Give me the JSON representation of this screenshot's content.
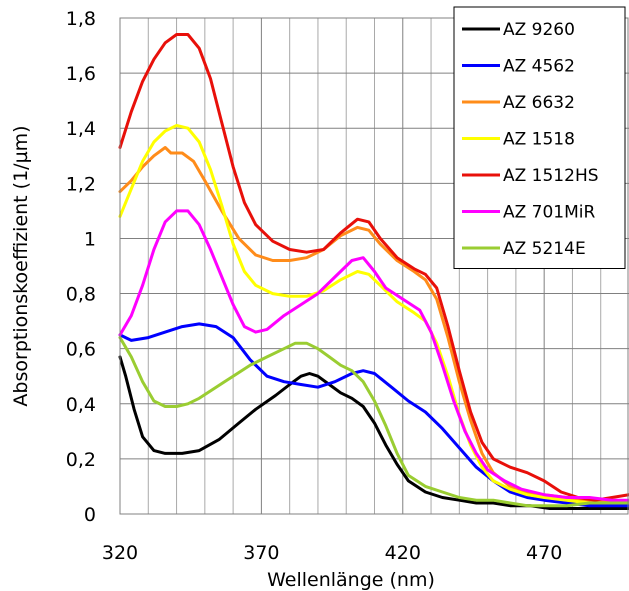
{
  "chart_data": {
    "type": "line",
    "title": "",
    "xlabel": "Wellenlänge (nm)",
    "ylabel": "Absorptionskoeffizient (1/µm)",
    "xlim": [
      320,
      500
    ],
    "ylim": [
      0,
      1.8
    ],
    "xticks": [
      320,
      370,
      420,
      470
    ],
    "xtick_labels": [
      "320",
      "370",
      "420",
      "470"
    ],
    "yticks": [
      0,
      0.2,
      0.4,
      0.6,
      0.8,
      1.0,
      1.2,
      1.4,
      1.6,
      1.8
    ],
    "ytick_labels": [
      "0",
      "0,2",
      "0,4",
      "0,6",
      "0,8",
      "1",
      "1,2",
      "1,4",
      "1,6",
      "1,8"
    ],
    "grid": true,
    "legend_position": "top-right",
    "series": [
      {
        "name": "AZ 9260",
        "color": "#000000",
        "points": [
          [
            320,
            0.57
          ],
          [
            322,
            0.5
          ],
          [
            325,
            0.38
          ],
          [
            328,
            0.28
          ],
          [
            332,
            0.23
          ],
          [
            336,
            0.22
          ],
          [
            342,
            0.22
          ],
          [
            348,
            0.23
          ],
          [
            355,
            0.27
          ],
          [
            362,
            0.33
          ],
          [
            368,
            0.38
          ],
          [
            375,
            0.43
          ],
          [
            380,
            0.47
          ],
          [
            384,
            0.5
          ],
          [
            387,
            0.51
          ],
          [
            390,
            0.5
          ],
          [
            394,
            0.47
          ],
          [
            398,
            0.44
          ],
          [
            402,
            0.42
          ],
          [
            406,
            0.39
          ],
          [
            410,
            0.33
          ],
          [
            414,
            0.25
          ],
          [
            418,
            0.18
          ],
          [
            422,
            0.12
          ],
          [
            428,
            0.08
          ],
          [
            434,
            0.06
          ],
          [
            440,
            0.05
          ],
          [
            446,
            0.04
          ],
          [
            452,
            0.04
          ],
          [
            458,
            0.03
          ],
          [
            465,
            0.03
          ],
          [
            472,
            0.02
          ],
          [
            480,
            0.02
          ],
          [
            490,
            0.02
          ],
          [
            500,
            0.02
          ]
        ]
      },
      {
        "name": "AZ 4562",
        "color": "#0000ff",
        "points": [
          [
            320,
            0.65
          ],
          [
            324,
            0.63
          ],
          [
            330,
            0.64
          ],
          [
            336,
            0.66
          ],
          [
            342,
            0.68
          ],
          [
            348,
            0.69
          ],
          [
            354,
            0.68
          ],
          [
            360,
            0.64
          ],
          [
            366,
            0.56
          ],
          [
            372,
            0.5
          ],
          [
            378,
            0.48
          ],
          [
            384,
            0.47
          ],
          [
            390,
            0.46
          ],
          [
            396,
            0.48
          ],
          [
            402,
            0.51
          ],
          [
            406,
            0.52
          ],
          [
            410,
            0.51
          ],
          [
            416,
            0.46
          ],
          [
            422,
            0.41
          ],
          [
            428,
            0.37
          ],
          [
            434,
            0.31
          ],
          [
            440,
            0.24
          ],
          [
            446,
            0.17
          ],
          [
            452,
            0.12
          ],
          [
            458,
            0.08
          ],
          [
            464,
            0.06
          ],
          [
            470,
            0.05
          ],
          [
            478,
            0.04
          ],
          [
            486,
            0.03
          ],
          [
            494,
            0.03
          ],
          [
            500,
            0.03
          ]
        ]
      },
      {
        "name": "AZ 6632",
        "color": "#ff8c1a",
        "points": [
          [
            320,
            1.17
          ],
          [
            324,
            1.21
          ],
          [
            328,
            1.26
          ],
          [
            332,
            1.3
          ],
          [
            336,
            1.33
          ],
          [
            338,
            1.31
          ],
          [
            342,
            1.31
          ],
          [
            346,
            1.28
          ],
          [
            350,
            1.21
          ],
          [
            356,
            1.1
          ],
          [
            362,
            1.0
          ],
          [
            368,
            0.94
          ],
          [
            374,
            0.92
          ],
          [
            380,
            0.92
          ],
          [
            386,
            0.93
          ],
          [
            392,
            0.96
          ],
          [
            398,
            1.01
          ],
          [
            404,
            1.04
          ],
          [
            408,
            1.03
          ],
          [
            412,
            0.98
          ],
          [
            418,
            0.92
          ],
          [
            424,
            0.88
          ],
          [
            428,
            0.85
          ],
          [
            432,
            0.78
          ],
          [
            436,
            0.64
          ],
          [
            440,
            0.48
          ],
          [
            444,
            0.34
          ],
          [
            448,
            0.22
          ],
          [
            452,
            0.15
          ],
          [
            458,
            0.1
          ],
          [
            464,
            0.08
          ],
          [
            470,
            0.07
          ],
          [
            478,
            0.06
          ],
          [
            486,
            0.05
          ],
          [
            494,
            0.04
          ],
          [
            500,
            0.04
          ]
        ]
      },
      {
        "name": "AZ 1518",
        "color": "#ffff00",
        "points": [
          [
            320,
            1.08
          ],
          [
            324,
            1.18
          ],
          [
            328,
            1.28
          ],
          [
            332,
            1.35
          ],
          [
            336,
            1.39
          ],
          [
            340,
            1.41
          ],
          [
            344,
            1.4
          ],
          [
            348,
            1.35
          ],
          [
            352,
            1.25
          ],
          [
            356,
            1.12
          ],
          [
            360,
            0.98
          ],
          [
            364,
            0.88
          ],
          [
            368,
            0.83
          ],
          [
            374,
            0.8
          ],
          [
            380,
            0.79
          ],
          [
            386,
            0.79
          ],
          [
            392,
            0.81
          ],
          [
            398,
            0.85
          ],
          [
            404,
            0.88
          ],
          [
            408,
            0.87
          ],
          [
            412,
            0.83
          ],
          [
            418,
            0.77
          ],
          [
            424,
            0.73
          ],
          [
            428,
            0.7
          ],
          [
            432,
            0.62
          ],
          [
            436,
            0.5
          ],
          [
            440,
            0.36
          ],
          [
            444,
            0.25
          ],
          [
            448,
            0.17
          ],
          [
            452,
            0.12
          ],
          [
            458,
            0.09
          ],
          [
            464,
            0.07
          ],
          [
            470,
            0.06
          ],
          [
            478,
            0.05
          ],
          [
            486,
            0.04
          ],
          [
            494,
            0.04
          ],
          [
            500,
            0.04
          ]
        ]
      },
      {
        "name": "AZ 1512HS",
        "color": "#e8100a",
        "points": [
          [
            320,
            1.33
          ],
          [
            324,
            1.46
          ],
          [
            328,
            1.57
          ],
          [
            332,
            1.65
          ],
          [
            336,
            1.71
          ],
          [
            340,
            1.74
          ],
          [
            344,
            1.74
          ],
          [
            348,
            1.69
          ],
          [
            352,
            1.58
          ],
          [
            356,
            1.42
          ],
          [
            360,
            1.26
          ],
          [
            364,
            1.13
          ],
          [
            368,
            1.05
          ],
          [
            374,
            0.99
          ],
          [
            380,
            0.96
          ],
          [
            386,
            0.95
          ],
          [
            392,
            0.96
          ],
          [
            398,
            1.02
          ],
          [
            404,
            1.07
          ],
          [
            408,
            1.06
          ],
          [
            412,
            1.0
          ],
          [
            418,
            0.93
          ],
          [
            424,
            0.89
          ],
          [
            428,
            0.87
          ],
          [
            432,
            0.82
          ],
          [
            436,
            0.68
          ],
          [
            440,
            0.52
          ],
          [
            444,
            0.37
          ],
          [
            448,
            0.26
          ],
          [
            452,
            0.2
          ],
          [
            458,
            0.17
          ],
          [
            464,
            0.15
          ],
          [
            470,
            0.12
          ],
          [
            476,
            0.08
          ],
          [
            482,
            0.06
          ],
          [
            488,
            0.05
          ],
          [
            494,
            0.06
          ],
          [
            500,
            0.07
          ]
        ]
      },
      {
        "name": "AZ 701MiR",
        "color": "#ff00ff",
        "points": [
          [
            320,
            0.65
          ],
          [
            324,
            0.72
          ],
          [
            328,
            0.83
          ],
          [
            332,
            0.96
          ],
          [
            336,
            1.06
          ],
          [
            340,
            1.1
          ],
          [
            344,
            1.1
          ],
          [
            348,
            1.05
          ],
          [
            352,
            0.96
          ],
          [
            356,
            0.86
          ],
          [
            360,
            0.76
          ],
          [
            364,
            0.68
          ],
          [
            368,
            0.66
          ],
          [
            372,
            0.67
          ],
          [
            378,
            0.72
          ],
          [
            384,
            0.76
          ],
          [
            390,
            0.8
          ],
          [
            396,
            0.86
          ],
          [
            402,
            0.92
          ],
          [
            406,
            0.93
          ],
          [
            410,
            0.88
          ],
          [
            414,
            0.82
          ],
          [
            420,
            0.78
          ],
          [
            426,
            0.74
          ],
          [
            430,
            0.66
          ],
          [
            434,
            0.54
          ],
          [
            438,
            0.41
          ],
          [
            442,
            0.3
          ],
          [
            446,
            0.22
          ],
          [
            450,
            0.16
          ],
          [
            456,
            0.12
          ],
          [
            462,
            0.09
          ],
          [
            470,
            0.07
          ],
          [
            478,
            0.06
          ],
          [
            486,
            0.06
          ],
          [
            494,
            0.05
          ],
          [
            500,
            0.05
          ]
        ]
      },
      {
        "name": "AZ 5214E",
        "color": "#9acd32",
        "points": [
          [
            320,
            0.64
          ],
          [
            324,
            0.57
          ],
          [
            328,
            0.48
          ],
          [
            332,
            0.41
          ],
          [
            336,
            0.39
          ],
          [
            340,
            0.39
          ],
          [
            344,
            0.4
          ],
          [
            348,
            0.42
          ],
          [
            354,
            0.46
          ],
          [
            360,
            0.5
          ],
          [
            366,
            0.54
          ],
          [
            372,
            0.57
          ],
          [
            378,
            0.6
          ],
          [
            382,
            0.62
          ],
          [
            386,
            0.62
          ],
          [
            390,
            0.6
          ],
          [
            394,
            0.57
          ],
          [
            398,
            0.54
          ],
          [
            402,
            0.52
          ],
          [
            406,
            0.48
          ],
          [
            410,
            0.41
          ],
          [
            414,
            0.32
          ],
          [
            418,
            0.22
          ],
          [
            422,
            0.14
          ],
          [
            428,
            0.1
          ],
          [
            434,
            0.08
          ],
          [
            440,
            0.06
          ],
          [
            446,
            0.05
          ],
          [
            452,
            0.05
          ],
          [
            458,
            0.04
          ],
          [
            464,
            0.03
          ],
          [
            470,
            0.03
          ],
          [
            478,
            0.03
          ],
          [
            486,
            0.04
          ],
          [
            494,
            0.04
          ],
          [
            500,
            0.04
          ]
        ]
      }
    ]
  }
}
